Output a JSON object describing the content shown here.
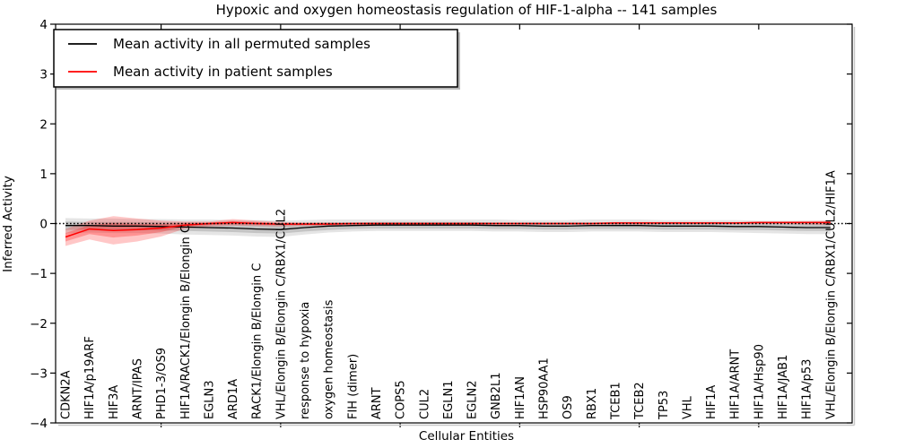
{
  "chart_data": {
    "type": "line",
    "title": "Hypoxic and oxygen homeostasis regulation of HIF-1-alpha -- 141 samples",
    "xlabel": "Cellular Entities",
    "ylabel": "Inferred Activity",
    "ylim": [
      -4,
      4
    ],
    "yticks": [
      4,
      3,
      2,
      1,
      0,
      -1,
      -2,
      -3,
      -4
    ],
    "x_major_tick_indices": [
      4,
      9,
      14,
      19,
      24,
      29
    ],
    "grid": false,
    "zero_line_style": "dotted",
    "legend_position": "upper left",
    "categories": [
      "CDKN2A",
      "HIF1A/p19ARF",
      "HIF3A",
      "ARNT/IPAS",
      "PHD1-3/OS9",
      "HIF1A/RACK1/Elongin B/Elongin C",
      "EGLN3",
      "ARD1A",
      "RACK1/Elongin B/Elongin C",
      "VHL/Elongin B/Elongin C/RBX1/CUL2",
      "response to hypoxia",
      "oxygen homeostasis",
      "FIH (dimer)",
      "ARNT",
      "COPS5",
      "CUL2",
      "EGLN1",
      "EGLN2",
      "GNB2L1",
      "HIF1AN",
      "HSP90AA1",
      "OS9",
      "RBX1",
      "TCEB1",
      "TCEB2",
      "TP53",
      "VHL",
      "HIF1A",
      "HIF1A/ARNT",
      "HIF1A/Hsp90",
      "HIF1A/JAB1",
      "HIF1A/p53",
      "VHL/Elongin B/Elongin C/RBX1/CUL2/HIF1A"
    ],
    "series": [
      {
        "name": "Mean activity in all permuted samples",
        "color": "#000000",
        "band_color": "#000000",
        "band_opacity": 0.1,
        "values": [
          -0.04,
          -0.04,
          -0.05,
          -0.05,
          -0.06,
          -0.07,
          -0.08,
          -0.09,
          -0.11,
          -0.12,
          -0.08,
          -0.05,
          -0.04,
          -0.03,
          -0.03,
          -0.03,
          -0.03,
          -0.03,
          -0.04,
          -0.04,
          -0.05,
          -0.05,
          -0.04,
          -0.04,
          -0.04,
          -0.05,
          -0.05,
          -0.05,
          -0.06,
          -0.06,
          -0.07,
          -0.08,
          -0.08
        ],
        "band_upper": [
          0.11,
          0.1,
          0.1,
          0.09,
          0.09,
          0.08,
          0.08,
          0.07,
          0.07,
          0.06,
          0.07,
          0.08,
          0.08,
          0.08,
          0.08,
          0.08,
          0.08,
          0.08,
          0.08,
          0.07,
          0.07,
          0.07,
          0.08,
          0.08,
          0.08,
          0.07,
          0.07,
          0.07,
          0.07,
          0.06,
          0.06,
          0.06,
          0.06
        ],
        "band_lower": [
          -0.2,
          -0.18,
          -0.19,
          -0.19,
          -0.2,
          -0.22,
          -0.23,
          -0.24,
          -0.26,
          -0.27,
          -0.22,
          -0.18,
          -0.16,
          -0.15,
          -0.15,
          -0.15,
          -0.15,
          -0.15,
          -0.16,
          -0.16,
          -0.17,
          -0.17,
          -0.16,
          -0.16,
          -0.16,
          -0.17,
          -0.17,
          -0.17,
          -0.18,
          -0.19,
          -0.2,
          -0.21,
          -0.21
        ],
        "band_inner_upper": [
          0.04,
          0.03,
          0.03,
          0.03,
          0.02,
          0.02,
          0.01,
          0.01,
          0.0,
          -0.01,
          0.01,
          0.02,
          0.02,
          0.03,
          0.03,
          0.03,
          0.03,
          0.03,
          0.02,
          0.02,
          0.02,
          0.02,
          0.02,
          0.02,
          0.02,
          0.02,
          0.02,
          0.02,
          0.01,
          0.01,
          0.0,
          0.0,
          0.0
        ],
        "band_inner_lower": [
          -0.13,
          -0.12,
          -0.13,
          -0.13,
          -0.14,
          -0.15,
          -0.16,
          -0.17,
          -0.19,
          -0.2,
          -0.16,
          -0.13,
          -0.11,
          -0.1,
          -0.1,
          -0.1,
          -0.1,
          -0.1,
          -0.11,
          -0.11,
          -0.12,
          -0.12,
          -0.11,
          -0.11,
          -0.11,
          -0.12,
          -0.12,
          -0.12,
          -0.13,
          -0.13,
          -0.14,
          -0.15,
          -0.15
        ]
      },
      {
        "name": "Mean activity in patient samples",
        "color": "#ff0000",
        "band_color": "#ff0000",
        "band_opacity": 0.22,
        "values": [
          -0.27,
          -0.11,
          -0.14,
          -0.12,
          -0.09,
          -0.03,
          0.0,
          0.02,
          0.0,
          -0.01,
          -0.01,
          -0.01,
          0.0,
          0.0,
          0.0,
          0.0,
          0.0,
          0.0,
          0.0,
          0.0,
          0.0,
          0.0,
          0.0,
          0.01,
          0.01,
          0.01,
          0.01,
          0.01,
          0.01,
          0.02,
          0.02,
          0.02,
          0.02
        ],
        "band_upper": [
          -0.11,
          0.06,
          0.15,
          0.1,
          0.06,
          0.04,
          0.04,
          0.09,
          0.06,
          0.03,
          0.02,
          0.02,
          0.02,
          0.02,
          0.02,
          0.02,
          0.02,
          0.02,
          0.02,
          0.02,
          0.02,
          0.02,
          0.02,
          0.03,
          0.03,
          0.03,
          0.03,
          0.03,
          0.03,
          0.04,
          0.04,
          0.05,
          0.06
        ],
        "band_lower": [
          -0.45,
          -0.32,
          -0.42,
          -0.36,
          -0.26,
          -0.1,
          -0.06,
          -0.04,
          -0.05,
          -0.06,
          -0.05,
          -0.04,
          -0.03,
          -0.03,
          -0.03,
          -0.03,
          -0.03,
          -0.02,
          -0.02,
          -0.02,
          -0.02,
          -0.02,
          -0.02,
          -0.02,
          -0.02,
          -0.01,
          -0.01,
          -0.01,
          -0.01,
          -0.01,
          -0.01,
          -0.02,
          -0.03
        ],
        "band_inner_upper": [
          -0.19,
          -0.03,
          0.01,
          -0.01,
          -0.01,
          0.01,
          0.02,
          0.05,
          0.03,
          0.01,
          0.01,
          0.01,
          0.01,
          0.01,
          0.01,
          0.01,
          0.01,
          0.01,
          0.01,
          0.01,
          0.01,
          0.01,
          0.01,
          0.02,
          0.02,
          0.02,
          0.02,
          0.02,
          0.02,
          0.03,
          0.03,
          0.03,
          0.04
        ],
        "band_inner_lower": [
          -0.36,
          -0.21,
          -0.28,
          -0.24,
          -0.17,
          -0.06,
          -0.03,
          -0.01,
          -0.02,
          -0.03,
          -0.02,
          -0.02,
          -0.01,
          -0.01,
          -0.01,
          -0.01,
          -0.01,
          -0.01,
          -0.01,
          -0.01,
          -0.01,
          -0.01,
          -0.01,
          0.0,
          0.0,
          0.0,
          0.0,
          0.0,
          0.0,
          0.01,
          0.01,
          0.01,
          0.0
        ]
      }
    ]
  }
}
